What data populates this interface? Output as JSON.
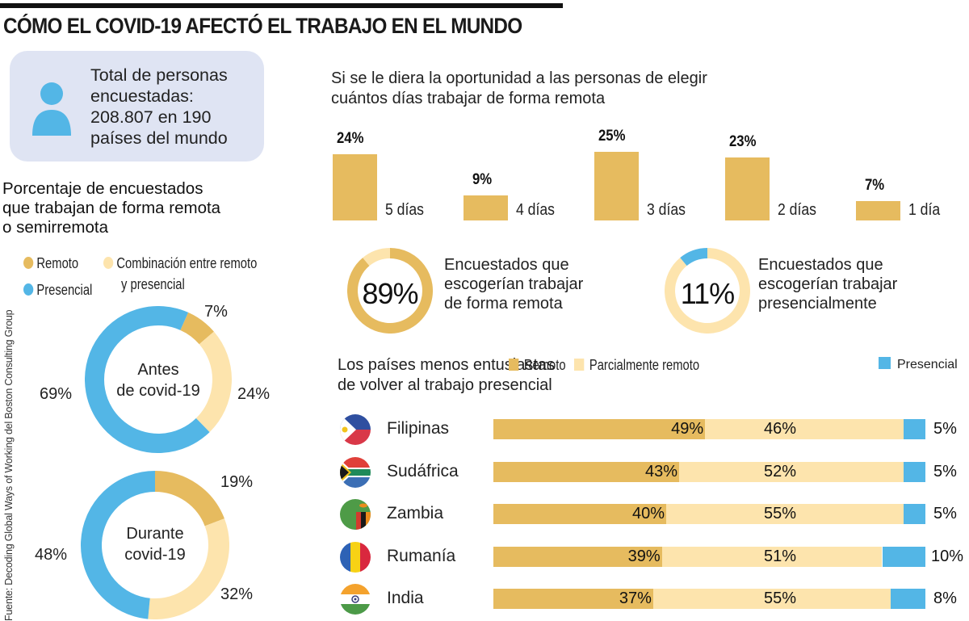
{
  "title": "CÓMO EL COVID-19 AFECTÓ EL TRABAJO EN EL MUNDO",
  "colors": {
    "remoto": "#e6bb5f",
    "parcial": "#fde4ad",
    "presencial": "#53b6e6",
    "info_bg": "#dfe4f3"
  },
  "info_box": {
    "icon": "person-icon",
    "lines": [
      "Total de personas",
      "encuestadas:",
      "208.807 en 190",
      "países del mundo"
    ]
  },
  "source": "Fuente: Decoding Global Ways of Working del Boston Consulting Group",
  "chart_data": [
    {
      "type": "pie",
      "title": "Porcentaje de encuestados que trabajan de forma remota o semirremota",
      "title_lines": [
        "Porcentaje de encuestados",
        "que trabajan de forma remota",
        "o semirremota"
      ],
      "legend": [
        {
          "label": "Remoto",
          "color": "#e6bb5f"
        },
        {
          "label": "Combinación entre remoto",
          "label2": "y presencial",
          "color": "#fde4ad"
        },
        {
          "label": "Presencial",
          "color": "#53b6e6"
        }
      ],
      "donuts": [
        {
          "center_label": [
            "Antes",
            "de covid-19"
          ],
          "slices": [
            {
              "name": "Remoto",
              "value": 7,
              "label": "7%"
            },
            {
              "name": "Combinación entre remoto y presencial",
              "value": 24,
              "label": "24%"
            },
            {
              "name": "Presencial",
              "value": 69,
              "label": "69%"
            }
          ]
        },
        {
          "center_label": [
            "Durante",
            "covid-19"
          ],
          "slices": [
            {
              "name": "Remoto",
              "value": 19,
              "label": "19%"
            },
            {
              "name": "Combinación entre remoto y presencial",
              "value": 32,
              "label": "32%"
            },
            {
              "name": "Presencial",
              "value": 48,
              "label": "48%"
            }
          ]
        }
      ]
    },
    {
      "type": "bar",
      "title": "Si se le diera la oportunidad a las personas de elegir cuántos días trabajar de forma remota",
      "title_lines": [
        "Si se le diera la oportunidad a las personas de elegir",
        "cuántos días trabajar de forma remota"
      ],
      "categories": [
        "5 días",
        "4 días",
        "3 días",
        "2 días",
        "1 día"
      ],
      "values": [
        24,
        9,
        25,
        23,
        7
      ],
      "labels": [
        "24%",
        "9%",
        "25%",
        "23%",
        "7%"
      ],
      "ylim": [
        0,
        25
      ]
    },
    {
      "type": "pie",
      "rings": [
        {
          "value": 89,
          "label": "89%",
          "text": [
            "Encuestados que",
            "escogerían trabajar",
            "de forma remota"
          ],
          "fg": "#e6bb5f",
          "bg": "#fde4ad"
        },
        {
          "value": 11,
          "label": "11%",
          "text": [
            "Encuestados que",
            "escogerían trabajar",
            "presencialmente"
          ],
          "fg": "#53b6e6",
          "bg": "#fde4ad"
        }
      ]
    },
    {
      "type": "bar",
      "stacked": true,
      "orientation": "horizontal",
      "title": "Los países menos entusiastas de volver al trabajo presencial",
      "title_lines": [
        "Los países menos entusiastas",
        "de volver al trabajo presencial"
      ],
      "legend": [
        {
          "label": "Remoto",
          "color": "#e6bb5f"
        },
        {
          "label": "Parcialmente remoto",
          "color": "#fde4ad"
        },
        {
          "label": "Presencial",
          "color": "#53b6e6"
        }
      ],
      "categories": [
        "Filipinas",
        "Sudáfrica",
        "Zambia",
        "Rumanía",
        "India"
      ],
      "flags": [
        "philippines-flag-icon",
        "south-africa-flag-icon",
        "zambia-flag-icon",
        "romania-flag-icon",
        "india-flag-icon"
      ],
      "series": [
        {
          "name": "Remoto",
          "values": [
            49,
            43,
            40,
            39,
            37
          ]
        },
        {
          "name": "Parcialmente remoto",
          "values": [
            46,
            52,
            55,
            51,
            55
          ]
        },
        {
          "name": "Presencial",
          "values": [
            5,
            5,
            5,
            10,
            8
          ]
        }
      ]
    }
  ]
}
